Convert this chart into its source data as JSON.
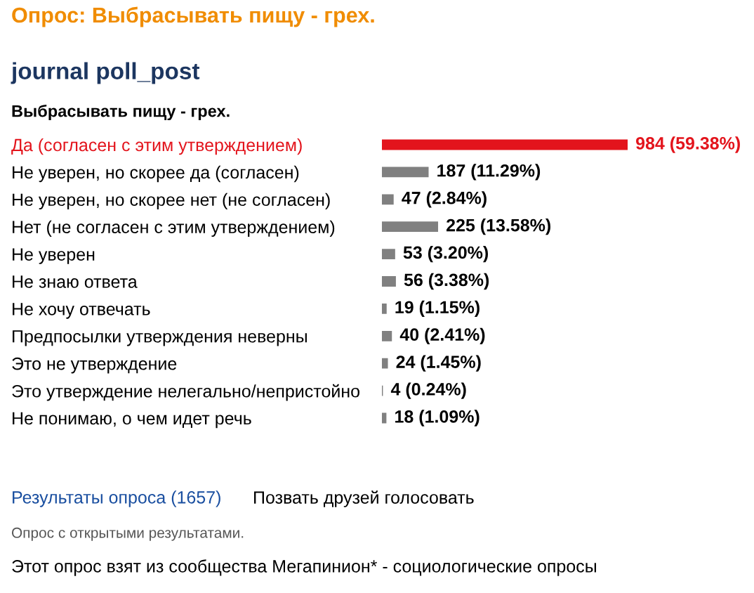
{
  "chart_data": {
    "type": "bar",
    "orientation": "horizontal",
    "title": "Опрос: Выбрасывать пищу - грех.",
    "subtitle": "journal poll_post",
    "categories": [
      "Да (согласен с этим утверждением)",
      "Не уверен, но скорее да (согласен)",
      "Не уверен, но скорее нет (не согласен)",
      "Нет (не согласен с этим утверждением)",
      "Не уверен",
      "Не знаю ответа",
      "Не хочу отвечать",
      "Предпосылки утверждения неверны",
      "Это не утверждение",
      "Это утверждение нелегально/непристойно",
      "Не понимаю, о чем идет речь"
    ],
    "values": [
      984,
      187,
      47,
      225,
      53,
      56,
      19,
      40,
      24,
      4,
      18
    ],
    "value_labels": [
      "984 (59.38%)",
      "187 (11.29%)",
      "47 (2.84%)",
      "225 (13.58%)",
      "53 (3.20%)",
      "56 (3.38%)",
      "19 (1.15%)",
      "40 (2.41%)",
      "24 (1.45%)",
      "4 (0.24%)",
      "18 (1.09%)"
    ],
    "colors": [
      "#e3141c",
      "#808080",
      "#808080",
      "#808080",
      "#808080",
      "#808080",
      "#808080",
      "#808080",
      "#808080",
      "#808080",
      "#808080"
    ],
    "annotations": [
      "Выбрасывать пищу - грех.",
      "Результаты опроса (1657)",
      "Позвать друзей голосовать",
      "Опрос с открытыми результатами.",
      "Этот опрос взят из сообщества Мегапинион* - социологические опросы"
    ]
  }
}
